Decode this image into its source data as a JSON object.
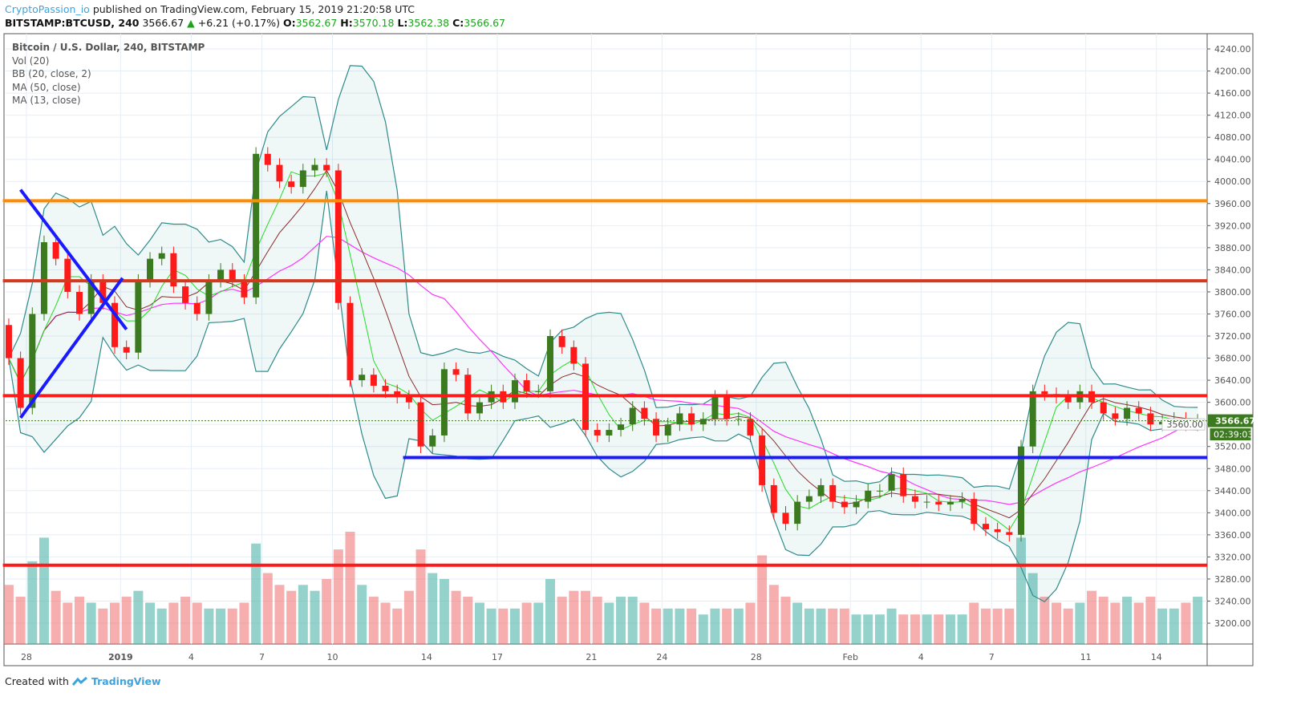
{
  "header": {
    "author": "CryptoPassion_io",
    "published": "published on TradingView.com, February 15, 2019 21:20:58 UTC",
    "symbol": "BITSTAMP:BTCUSD, 240",
    "last": "3566.67",
    "change": "+6.21 (+0.17%)",
    "o_label": "O:",
    "o": "3562.67",
    "h_label": "H:",
    "h": "3570.18",
    "l_label": "L:",
    "l": "3562.38",
    "c_label": "C:",
    "c": "3566.67"
  },
  "legend": {
    "title": "Bitcoin / U.S. Dollar, 240, BITSTAMP",
    "items": [
      "Vol (20)",
      "BB (20, close, 2)",
      "MA (50, close)",
      "MA (13, close)"
    ]
  },
  "footer": {
    "created_with": "Created with",
    "brand": "TradingView"
  },
  "colors": {
    "up": "#3b7a1e",
    "down": "#ff1a1a",
    "bb": "#2e8b8b",
    "ma50": "#ff33ff",
    "ma13": "#22dd22",
    "ma_slow": "#8b2c2c"
  },
  "chart_data": {
    "type": "candlestick",
    "first_candle": "2018-12-27",
    "candle_hours": 12,
    "close": [
      3680,
      3590,
      3760,
      3890,
      3860,
      3800,
      3760,
      3820,
      3780,
      3700,
      3690,
      3820,
      3860,
      3870,
      3810,
      3780,
      3760,
      3820,
      3840,
      3820,
      3790,
      4050,
      4030,
      4000,
      3990,
      4020,
      4030,
      4020,
      3780,
      3640,
      3650,
      3630,
      3620,
      3610,
      3600,
      3520,
      3540,
      3660,
      3650,
      3580,
      3600,
      3620,
      3600,
      3640,
      3620,
      3620,
      3720,
      3700,
      3670,
      3550,
      3540,
      3550,
      3560,
      3590,
      3570,
      3540,
      3560,
      3580,
      3560,
      3570,
      3610,
      3570,
      3570,
      3540,
      3450,
      3400,
      3380,
      3420,
      3430,
      3450,
      3420,
      3410,
      3420,
      3440,
      3440,
      3470,
      3430,
      3420,
      3420,
      3415,
      3420,
      3425,
      3380,
      3370,
      3365,
      3360,
      3520,
      3620,
      3615,
      3610,
      3600,
      3620,
      3600,
      3580,
      3570,
      3590,
      3580,
      3560,
      3565,
      3570,
      3560,
      3566.67
    ],
    "first_open": 3740,
    "volume": [
      50,
      40,
      70,
      90,
      45,
      35,
      40,
      35,
      30,
      35,
      40,
      45,
      35,
      30,
      35,
      40,
      35,
      30,
      30,
      30,
      35,
      85,
      60,
      50,
      45,
      50,
      45,
      55,
      80,
      95,
      50,
      40,
      35,
      30,
      45,
      80,
      60,
      55,
      45,
      40,
      35,
      30,
      30,
      30,
      35,
      35,
      55,
      40,
      45,
      45,
      40,
      35,
      40,
      40,
      35,
      30,
      30,
      30,
      30,
      25,
      30,
      30,
      30,
      35,
      75,
      50,
      40,
      35,
      30,
      30,
      30,
      30,
      25,
      25,
      25,
      30,
      25,
      25,
      25,
      25,
      25,
      25,
      35,
      30,
      30,
      30,
      90,
      60,
      40,
      35,
      30,
      35,
      45,
      40,
      35,
      40,
      35,
      40,
      30,
      30,
      35,
      40
    ],
    "levels": [
      {
        "price": 3965,
        "color": "#ff8c00",
        "from": "2018-12-27"
      },
      {
        "price": 3820,
        "color": "#d2391e",
        "from": "2018-12-27"
      },
      {
        "price": 3612,
        "color": "#ff1a1a",
        "from": "2018-12-27"
      },
      {
        "price": 3500,
        "color": "#1a1aff",
        "from": "2019-01-13"
      },
      {
        "price": 3305,
        "color": "#ff1a1a",
        "from": "2018-12-27"
      }
    ],
    "trendlines": [
      {
        "from": [
          "2018-12-27 18:00",
          3985
        ],
        "to": [
          "2019-01-01 06:00",
          3732
        ],
        "color": "#1a1aff"
      },
      {
        "from": [
          "2018-12-27 18:00",
          3572
        ],
        "to": [
          "2019-01-01 02:00",
          3825
        ],
        "color": "#1a1aff"
      }
    ],
    "y_ticks": [
      "4240.00",
      "4200.00",
      "4160.00",
      "4120.00",
      "4080.00",
      "4040.00",
      "4000.00",
      "3960.00",
      "3920.00",
      "3880.00",
      "3840.00",
      "3800.00",
      "3760.00",
      "3720.00",
      "3680.00",
      "3640.00",
      "3600.00",
      "3560.00",
      "3520.00",
      "3480.00",
      "3440.00",
      "3400.00",
      "3360.00",
      "3320.00",
      "3280.00",
      "3240.00",
      "3200.00"
    ],
    "x_ticks": [
      {
        "label": "28",
        "date": "2018-12-28"
      },
      {
        "label": "2019",
        "date": "2019-01-01"
      },
      {
        "label": "4",
        "date": "2019-01-04"
      },
      {
        "label": "7",
        "date": "2019-01-07"
      },
      {
        "label": "10",
        "date": "2019-01-10"
      },
      {
        "label": "14",
        "date": "2019-01-14"
      },
      {
        "label": "17",
        "date": "2019-01-17"
      },
      {
        "label": "21",
        "date": "2019-01-21"
      },
      {
        "label": "24",
        "date": "2019-01-24"
      },
      {
        "label": "28",
        "date": "2019-01-28"
      },
      {
        "label": "Feb",
        "date": "2019-02-01"
      },
      {
        "label": "4",
        "date": "2019-02-04"
      },
      {
        "label": "7",
        "date": "2019-02-07"
      },
      {
        "label": "11",
        "date": "2019-02-11"
      },
      {
        "label": "14",
        "date": "2019-02-14"
      }
    ],
    "price_label": "3566.67",
    "countdown": "02:39:03",
    "grid": true
  }
}
